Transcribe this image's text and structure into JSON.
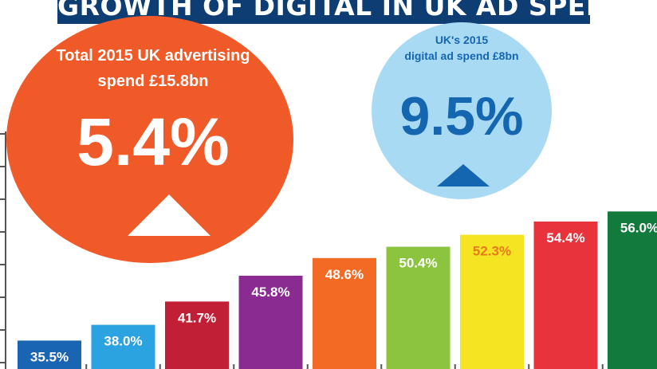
{
  "banner": {
    "title": "GROWTH OF DIGITAL IN UK AD SPENDING"
  },
  "callouts": {
    "total": {
      "caption_line1": "Total 2015 UK advertising",
      "caption_line2": "spend £15.8bn",
      "value": "5.4%"
    },
    "digital": {
      "caption_line1": "UK's 2015",
      "caption_line2": "digital ad spend £8bn",
      "value": "9.5%"
    }
  },
  "chart_data": {
    "type": "bar",
    "title": "GROWTH OF DIGITAL IN UK AD SPENDING",
    "xlabel": "",
    "ylabel": "",
    "categories": [],
    "values": [
      35.5,
      38.0,
      41.7,
      45.8,
      48.6,
      50.4,
      52.3,
      54.4,
      56.0
    ],
    "labels": [
      "35.5%",
      "38.0%",
      "41.7%",
      "45.8%",
      "48.6%",
      "50.4%",
      "52.3%",
      "54.4%",
      "56.0%"
    ],
    "colors": [
      "#1a64b4",
      "#2aa3e0",
      "#c01f36",
      "#8a2b92",
      "#f26a23",
      "#8cc43f",
      "#f5e421",
      "#e8323c",
      "#117a3c"
    ],
    "label_colors": [
      "#ffffff",
      "#ffffff",
      "#ffffff",
      "#ffffff",
      "#ffffff",
      "#ffffff",
      "#e87a1e",
      "#ffffff",
      "#ffffff"
    ],
    "ylim": [
      32,
      63
    ],
    "grid": false,
    "legend": "none"
  }
}
